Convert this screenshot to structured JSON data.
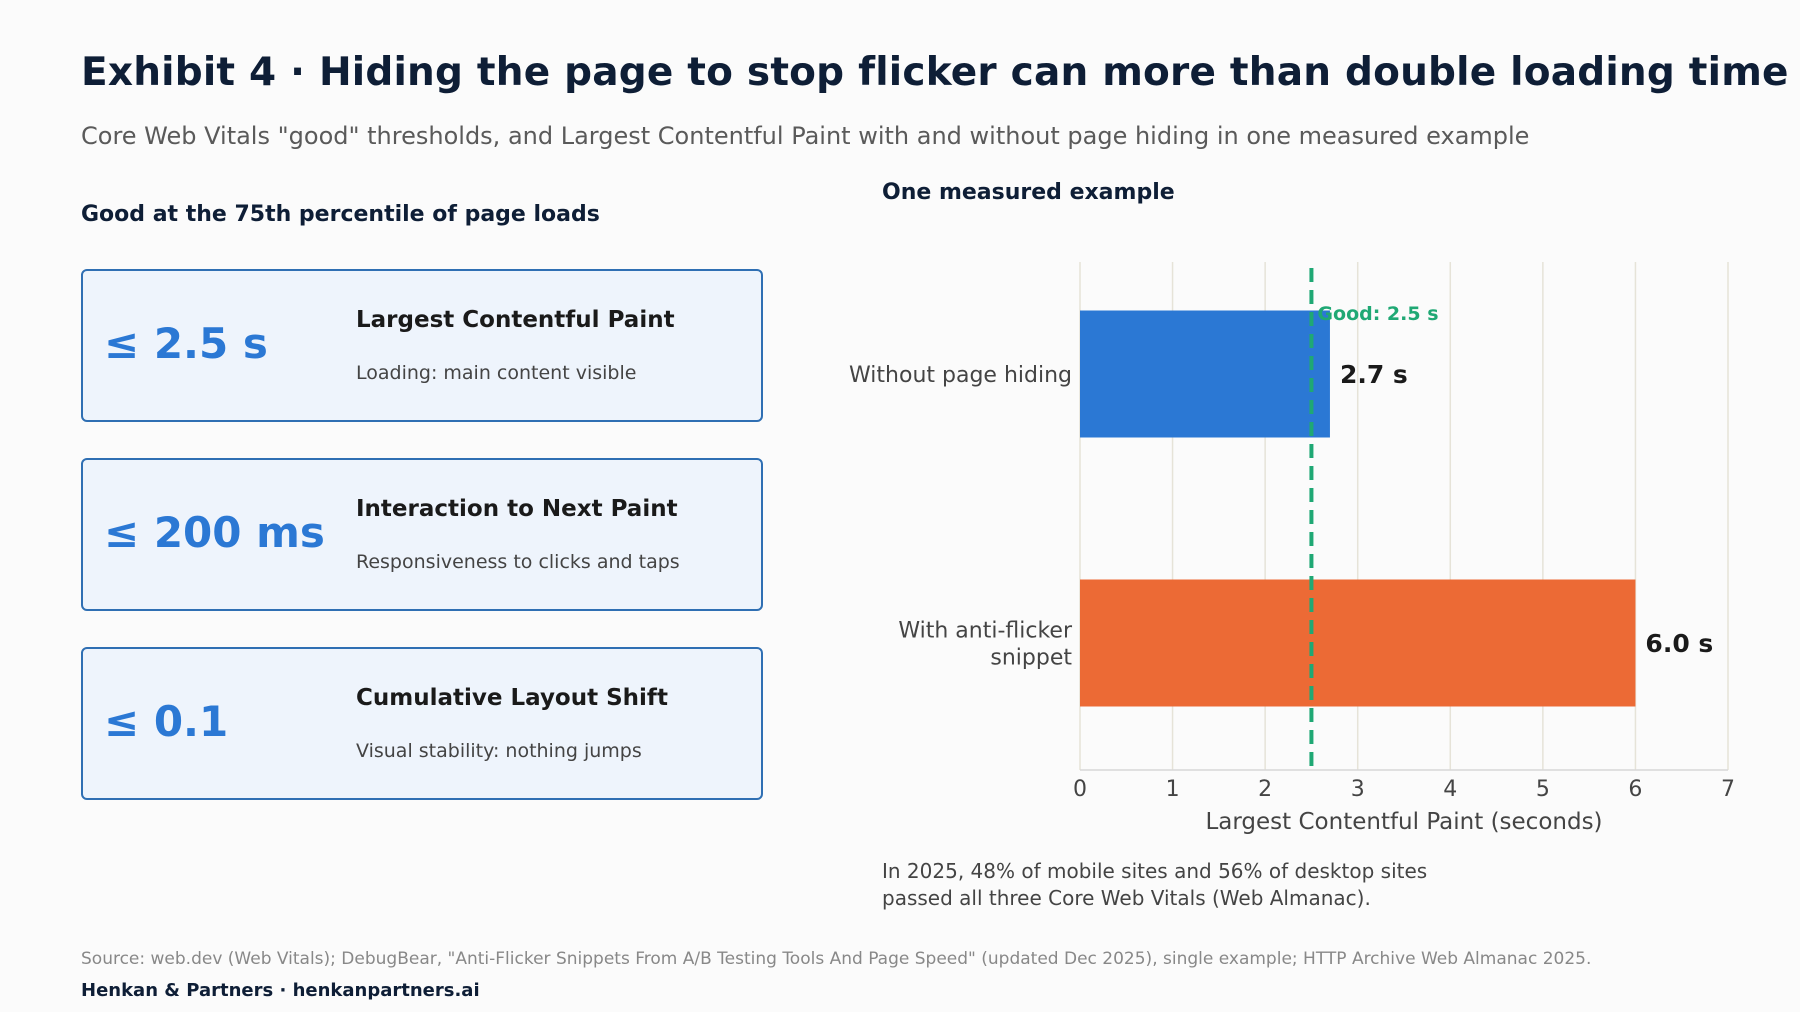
{
  "title": "Exhibit 4 · Hiding the page to stop flicker can more than double loading time",
  "subtitle": "Core Web Vitals \"good\" thresholds, and Largest Contentful Paint with and without page hiding in one measured example",
  "left_panel": {
    "heading": "Good at the 75th percentile of page loads",
    "cards": [
      {
        "value": "≤ 2.5 s",
        "name": "Largest Contentful Paint",
        "desc": "Loading: main content visible"
      },
      {
        "value": "≤ 200 ms",
        "name": "Interaction to Next Paint",
        "desc": "Responsiveness to clicks and taps"
      },
      {
        "value": "≤ 0.1",
        "name": "Cumulative Layout Shift",
        "desc": "Visual stability: nothing jumps"
      }
    ]
  },
  "right_panel": {
    "heading": "One measured example",
    "note_line1": "In 2025, 48% of mobile sites and 56% of desktop sites",
    "note_line2": "passed all three Core Web Vitals (Web Almanac)."
  },
  "chart_data": {
    "type": "bar",
    "orientation": "horizontal",
    "categories": [
      "Without page hiding",
      "With anti-flicker snippet"
    ],
    "category_lines": [
      [
        "Without page hiding"
      ],
      [
        "With anti-flicker",
        "snippet"
      ]
    ],
    "values": [
      2.7,
      6.0
    ],
    "value_labels": [
      "2.7 s",
      "6.0 s"
    ],
    "colors": [
      "#2b78d4",
      "#ec6a35"
    ],
    "xlabel": "Largest Contentful Paint (seconds)",
    "xlim": [
      0,
      7
    ],
    "xticks": [
      0,
      1,
      2,
      3,
      4,
      5,
      6,
      7
    ],
    "grid": true,
    "reference_line": {
      "value": 2.5,
      "label": "Good: 2.5 s",
      "color": "#1fa874"
    }
  },
  "footer": {
    "source": "Source: web.dev (Web Vitals); DebugBear, \"Anti-Flicker Snippets From A/B Testing Tools And Page Speed\" (updated Dec 2025), single example; HTTP Archive Web Almanac 2025.",
    "brand": "Henkan & Partners · henkanpartners.ai"
  }
}
